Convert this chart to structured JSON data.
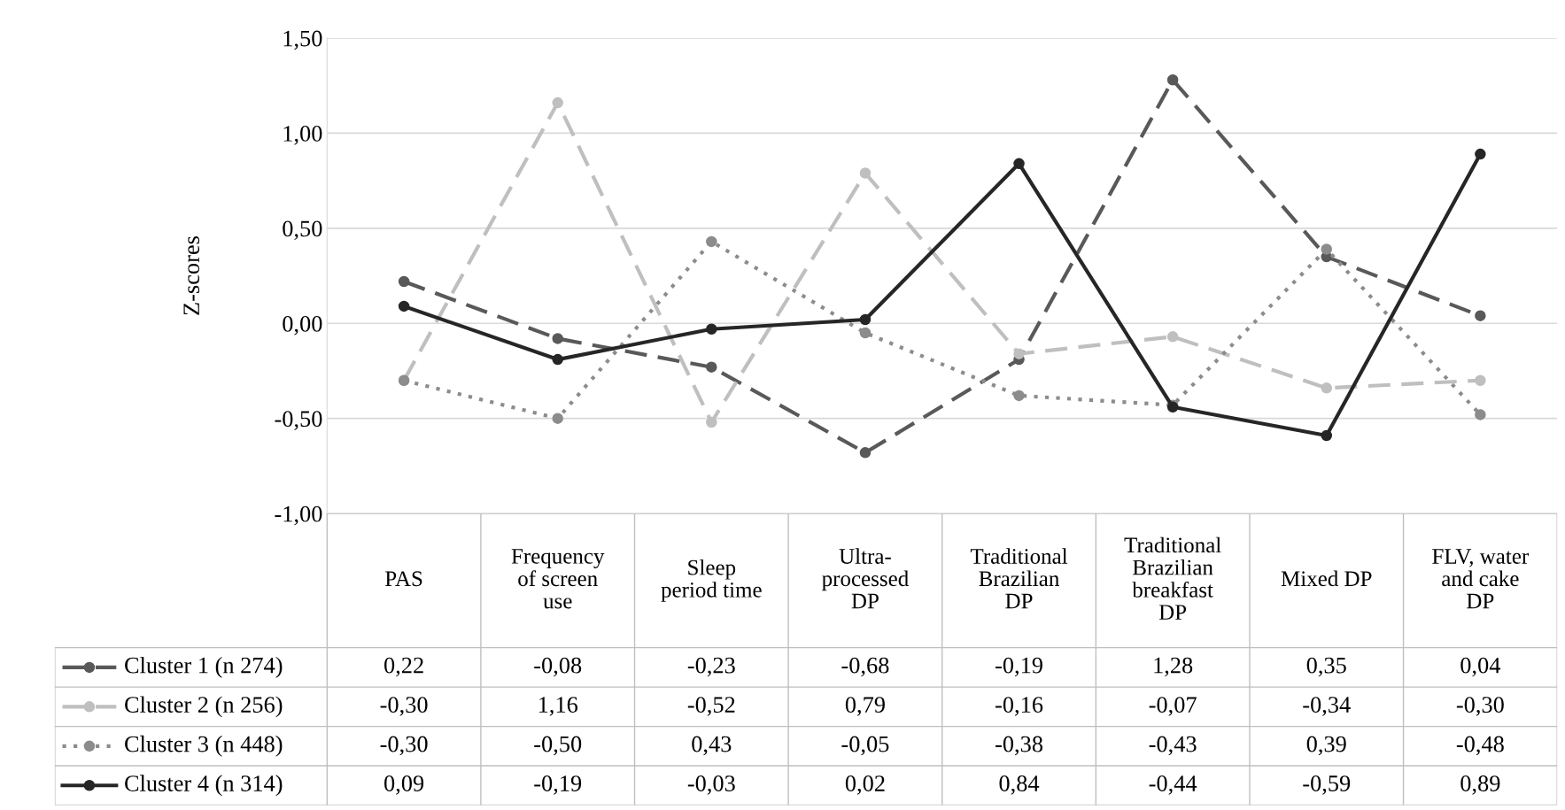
{
  "chart_data": {
    "type": "line",
    "ylabel": "Z-scores",
    "categories": [
      "PAS",
      "Frequency\nof screen\nuse",
      "Sleep\nperiod time",
      "Ultra-\nprocessed\nDP",
      "Traditional\nBrazilian\nDP",
      "Traditional\nBrazilian\nbreakfast\nDP",
      "Mixed DP",
      "FLV, water\nand cake\nDP"
    ],
    "ylim": [
      -1.0,
      1.5
    ],
    "yticks": [
      {
        "value": -1.0,
        "label": "-1,00"
      },
      {
        "value": -0.5,
        "label": "-0,50"
      },
      {
        "value": 0.0,
        "label": "0,00"
      },
      {
        "value": 0.5,
        "label": "0,50"
      },
      {
        "value": 1.0,
        "label": "1,00"
      },
      {
        "value": 1.5,
        "label": "1,50"
      }
    ],
    "grid": "y",
    "legend": "bottom",
    "series": [
      {
        "name": "Cluster 1 (n 274)",
        "color": "#595959",
        "line_style": "dashed",
        "marker": "circle",
        "values": [
          0.22,
          -0.08,
          -0.23,
          -0.68,
          -0.19,
          1.28,
          0.35,
          0.04
        ],
        "value_labels": [
          "0,22",
          "-0,08",
          "-0,23",
          "-0,68",
          "-0,19",
          "1,28",
          "0,35",
          "0,04"
        ]
      },
      {
        "name": "Cluster 2 (n 256)",
        "color": "#bfbfbf",
        "line_style": "dashed",
        "marker": "circle",
        "values": [
          -0.3,
          1.16,
          -0.52,
          0.79,
          -0.16,
          -0.07,
          -0.34,
          -0.3
        ],
        "value_labels": [
          "-0,30",
          "1,16",
          "-0,52",
          "0,79",
          "-0,16",
          "-0,07",
          "-0,34",
          "-0,30"
        ]
      },
      {
        "name": "Cluster 3 (n 448)",
        "color": "#8c8c8c",
        "line_style": "dotted",
        "marker": "circle",
        "values": [
          -0.3,
          -0.5,
          0.43,
          -0.05,
          -0.38,
          -0.43,
          0.39,
          -0.48
        ],
        "value_labels": [
          "-0,30",
          "-0,50",
          "0,43",
          "-0,05",
          "-0,38",
          "-0,43",
          "0,39",
          "-0,48"
        ]
      },
      {
        "name": "Cluster 4 (n 314)",
        "color": "#262626",
        "line_style": "solid",
        "marker": "circle",
        "values": [
          0.09,
          -0.19,
          -0.03,
          0.02,
          0.84,
          -0.44,
          -0.59,
          0.89
        ],
        "value_labels": [
          "0,09",
          "-0,19",
          "-0,03",
          "0,02",
          "0,84",
          "-0,44",
          "-0,59",
          "0,89"
        ]
      }
    ]
  }
}
